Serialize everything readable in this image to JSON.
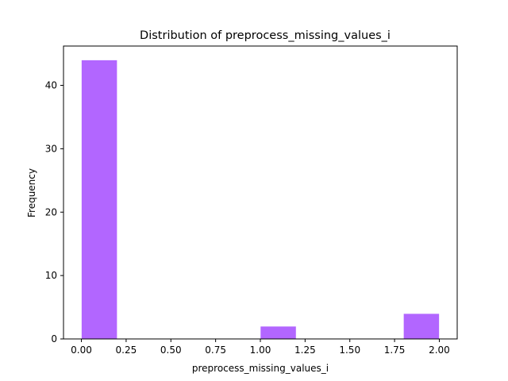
{
  "chart_data": {
    "type": "bar",
    "title": "Distribution of  preprocess_missing_values_i",
    "xlabel": "preprocess_missing_values_i",
    "ylabel": "Frequency",
    "xlim": [
      -0.1,
      2.1
    ],
    "ylim": [
      0,
      46.2
    ],
    "x_ticks": [
      "0.00",
      "0.25",
      "0.50",
      "0.75",
      "1.00",
      "1.25",
      "1.50",
      "1.75",
      "2.00"
    ],
    "x_tick_values": [
      0,
      0.25,
      0.5,
      0.75,
      1.0,
      1.25,
      1.5,
      1.75,
      2.0
    ],
    "y_ticks": [
      "0",
      "10",
      "20",
      "30",
      "40"
    ],
    "y_tick_values": [
      0,
      10,
      20,
      30,
      40
    ],
    "bins": [
      {
        "start": 0.0,
        "end": 0.2,
        "count": 44
      },
      {
        "start": 0.2,
        "end": 0.4,
        "count": 0
      },
      {
        "start": 0.4,
        "end": 0.6,
        "count": 0
      },
      {
        "start": 0.6,
        "end": 0.8,
        "count": 0
      },
      {
        "start": 0.8,
        "end": 1.0,
        "count": 0
      },
      {
        "start": 1.0,
        "end": 1.2,
        "count": 2
      },
      {
        "start": 1.2,
        "end": 1.4,
        "count": 0
      },
      {
        "start": 1.4,
        "end": 1.6,
        "count": 0
      },
      {
        "start": 1.6,
        "end": 1.8,
        "count": 0
      },
      {
        "start": 1.8,
        "end": 2.0,
        "count": 4
      }
    ],
    "bar_color": "#b266ff",
    "grid": false
  }
}
